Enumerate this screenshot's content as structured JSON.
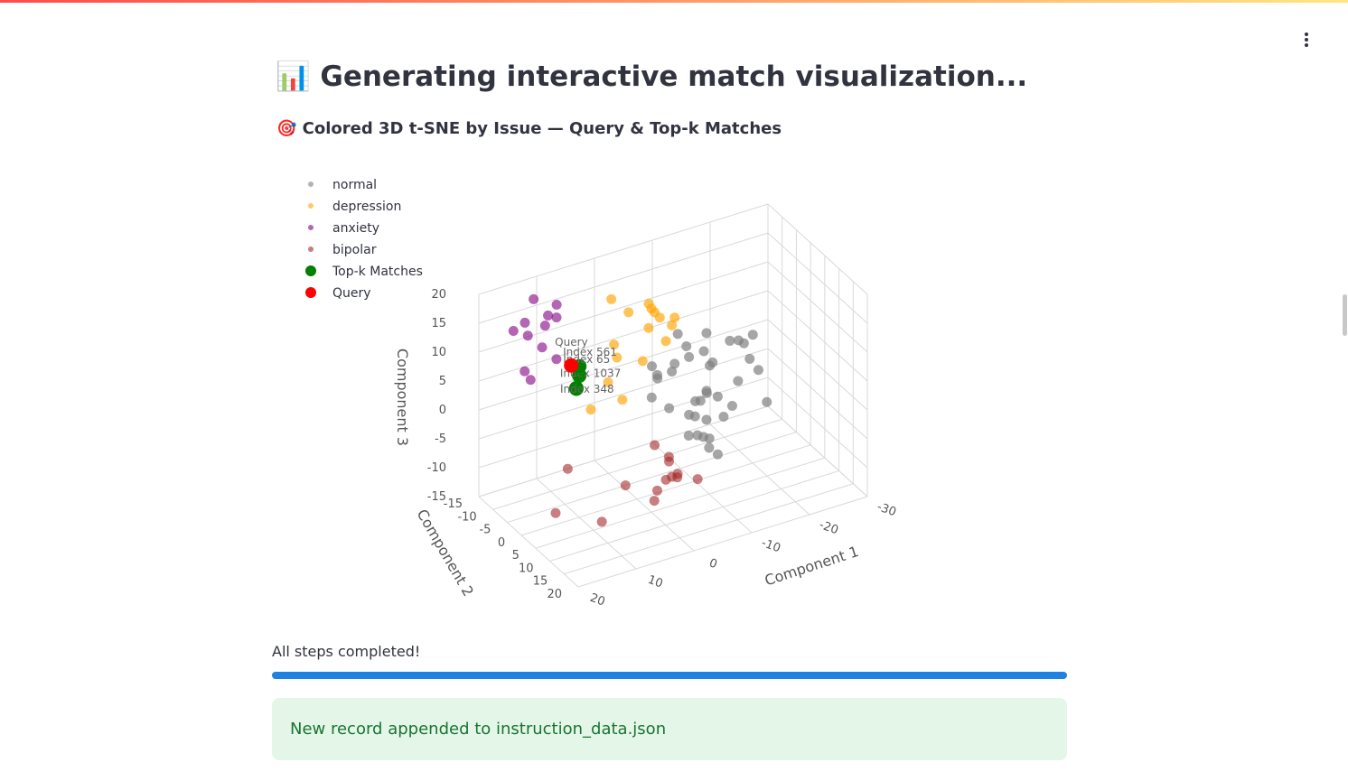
{
  "header": {
    "title": "📊 Generating interactive match visualization..."
  },
  "chart_data": {
    "type": "scatter3d",
    "title": "🎯 Colored 3D t-SNE by Issue — Query & Top-k Matches",
    "x_label": "Component 1",
    "y_label": "Component 2",
    "z_label": "Component 3",
    "xlim": [
      -30,
      20
    ],
    "ylim": [
      -15,
      20
    ],
    "zlim": [
      -15,
      20
    ],
    "xticks": [
      -30,
      -20,
      -10,
      0,
      10,
      20
    ],
    "yticks": [
      -15,
      -10,
      -5,
      0,
      5,
      10,
      15,
      20
    ],
    "zticks": [
      -15,
      -10,
      -5,
      0,
      5,
      10,
      15,
      20
    ],
    "grid": true,
    "legend": "top-left",
    "series": [
      {
        "name": "normal",
        "color": "#808080",
        "opacity": 0.7,
        "x": [
          -12,
          -15,
          -8,
          -18,
          -10,
          -5,
          -14,
          -20,
          -7,
          -11,
          -16,
          -3,
          -13,
          -9,
          -19,
          -6,
          -12,
          -17,
          -4,
          -10,
          -14,
          -8,
          -21,
          -11,
          -15,
          -6,
          -13,
          -9,
          -18,
          -12,
          -7,
          -16,
          -10,
          -5,
          -14,
          -20,
          -8,
          -11
        ],
        "y": [
          0,
          5,
          -5,
          3,
          -3,
          8,
          -8,
          2,
          -2,
          6,
          -6,
          1,
          4,
          -4,
          7,
          -7,
          0,
          3,
          -3,
          5,
          -5,
          2,
          -2,
          6,
          -6,
          1,
          -1,
          4,
          -4,
          0,
          7,
          -7,
          3,
          -3,
          5,
          -5,
          2,
          -2
        ],
        "z": [
          0,
          3,
          -4,
          5,
          7,
          -2,
          -6,
          2,
          4,
          -8,
          1,
          6,
          -3,
          9,
          -1,
          3,
          -5,
          8,
          0,
          -7,
          4,
          -2,
          6,
          2,
          -4,
          7,
          -9,
          1,
          5,
          10,
          -3,
          0,
          -6,
          3,
          -1,
          4,
          8,
          -5
        ]
      },
      {
        "name": "depression",
        "color": "#ffa500",
        "opacity": 0.65,
        "x": [
          -2,
          0,
          -4,
          2,
          -6,
          1,
          -3,
          4,
          -1,
          -5,
          3,
          6,
          8,
          5,
          -7,
          0
        ],
        "y": [
          0,
          -3,
          2,
          -5,
          1,
          4,
          -2,
          0,
          3,
          -4,
          -1,
          2,
          0,
          5,
          -2,
          8
        ],
        "z": [
          14,
          16,
          12,
          18,
          15,
          11,
          17,
          13,
          19,
          14,
          10,
          8,
          3,
          6,
          12,
          20
        ]
      },
      {
        "name": "anxiety",
        "color": "#800080",
        "opacity": 0.6,
        "x": [
          11,
          13,
          10,
          14,
          12,
          15,
          9,
          16,
          12,
          11,
          14,
          10
        ],
        "y": [
          -10,
          -12,
          -8,
          -11,
          -9,
          -13,
          -10,
          -7,
          -12,
          -6,
          -9,
          -11
        ],
        "z": [
          14,
          12,
          16,
          15,
          11,
          13,
          17,
          9,
          18,
          10,
          6,
          15
        ]
      },
      {
        "name": "bipolar",
        "color": "#a52a2a",
        "opacity": 0.6,
        "x": [
          -6,
          -4,
          -8,
          -5,
          -7,
          -3,
          -9,
          -6,
          -5,
          -2,
          12,
          19,
          11,
          2
        ],
        "y": [
          0,
          2,
          -2,
          4,
          -3,
          1,
          3,
          -1,
          -4,
          2,
          0,
          10,
          10,
          0
        ],
        "z": [
          -13,
          -12,
          -14,
          -11,
          -12,
          -14,
          -13,
          -10,
          -9,
          -15,
          -6,
          -7,
          -11,
          -12
        ]
      },
      {
        "name": "Top-k Matches",
        "color": "#008000",
        "opacity": 1,
        "x": [
          10,
          11,
          9.5,
          10.5
        ],
        "y": [
          0,
          1,
          -1,
          0
        ],
        "z": [
          9.5,
          8,
          10.5,
          7.5
        ],
        "labels": [
          "Index 561",
          "Index 1037",
          "Index 65",
          "Index 348"
        ]
      },
      {
        "name": "Query",
        "color": "#ff0000",
        "opacity": 1,
        "x": [
          11.4
        ],
        "y": [
          0
        ],
        "z": [
          11.7
        ],
        "labels": [
          "Query"
        ]
      }
    ]
  },
  "status": {
    "text": "All steps completed!",
    "progress": 100
  },
  "alert": {
    "text": "New record appended to instruction_data.json"
  }
}
